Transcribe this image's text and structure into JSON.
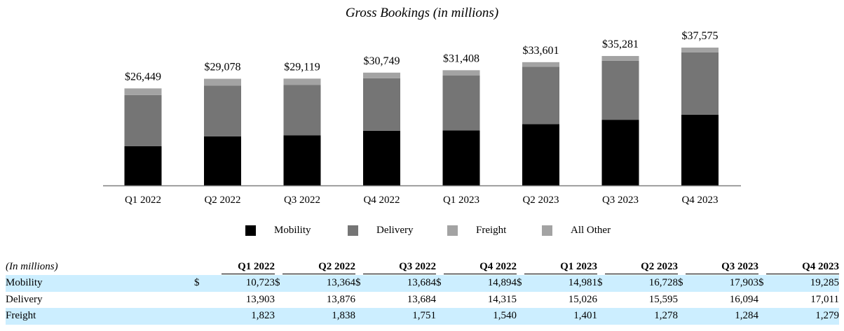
{
  "chart_data": {
    "type": "bar",
    "stacked": true,
    "title": "Gross Bookings (in millions)",
    "categories": [
      "Q1 2022",
      "Q2 2022",
      "Q3 2022",
      "Q4 2022",
      "Q1 2023",
      "Q2 2023",
      "Q3 2023",
      "Q4 2023"
    ],
    "totals": [
      "$26,449",
      "$29,078",
      "$29,119",
      "$30,749",
      "$31,408",
      "$33,601",
      "$35,281",
      "$37,575"
    ],
    "total_values": [
      26449,
      29078,
      29119,
      30749,
      31408,
      33601,
      35281,
      37575
    ],
    "series": [
      {
        "name": "Mobility",
        "color": "#000000",
        "values": [
          10723,
          13364,
          13684,
          14894,
          14981,
          16728,
          17903,
          19285
        ]
      },
      {
        "name": "Delivery",
        "color": "#757575",
        "values": [
          13903,
          13876,
          13684,
          14315,
          15026,
          15595,
          16094,
          17011
        ]
      },
      {
        "name": "Freight",
        "color": "#a3a3a3",
        "values": [
          1823,
          1838,
          1751,
          1540,
          1401,
          1278,
          1284,
          1279
        ]
      },
      {
        "name": "All Other",
        "color": "#a3a3a3",
        "values": [
          0,
          0,
          0,
          0,
          0,
          0,
          0,
          0
        ]
      }
    ],
    "ylim": [
      0,
      37575
    ],
    "grid": false,
    "legend_position": "bottom"
  },
  "table": {
    "header_label": "(In millions)",
    "columns": [
      "Q1 2022",
      "Q2 2022",
      "Q3 2022",
      "Q4 2022",
      "Q1 2023",
      "Q2 2023",
      "Q3 2023",
      "Q4 2023"
    ],
    "currency_symbol": "$",
    "rows": [
      {
        "label": "Mobility",
        "values": [
          "10,723",
          "13,364",
          "13,684",
          "14,894",
          "14,981",
          "16,728",
          "17,903",
          "19,285"
        ]
      },
      {
        "label": "Delivery",
        "values": [
          "13,903",
          "13,876",
          "13,684",
          "14,315",
          "15,026",
          "15,595",
          "16,094",
          "17,011"
        ]
      },
      {
        "label": "Freight",
        "values": [
          "1,823",
          "1,838",
          "1,751",
          "1,540",
          "1,401",
          "1,278",
          "1,284",
          "1,279"
        ]
      }
    ]
  }
}
